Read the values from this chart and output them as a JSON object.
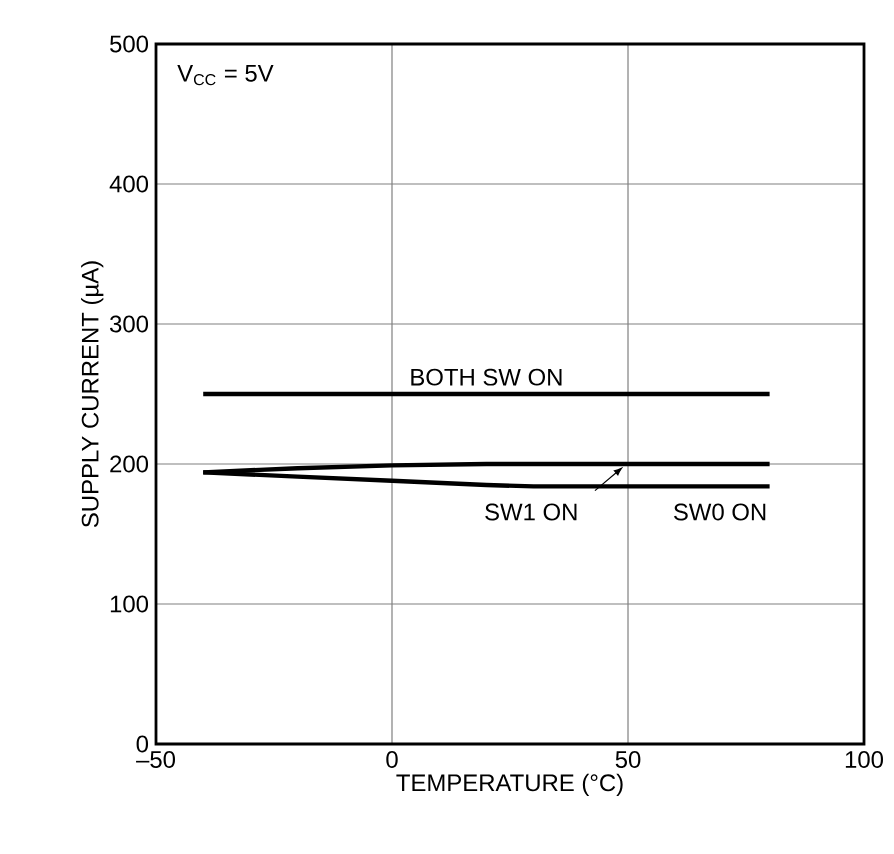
{
  "chart_data": {
    "type": "line",
    "xlabel": "TEMPERATURE (°C)",
    "ylabel": "SUPPLY CURRENT (µA)",
    "xlim": [
      -50,
      100
    ],
    "ylim": [
      0,
      500
    ],
    "xticks": [
      {
        "value": -50,
        "label": "–50"
      },
      0,
      50,
      100
    ],
    "yticks": [
      0,
      100,
      200,
      300,
      400,
      500
    ],
    "grid": true,
    "annotations": [
      "V$_{CC}$ = 5V"
    ],
    "series": [
      {
        "name": "BOTH SW ON",
        "color": "#000000",
        "x": [
          -40,
          80
        ],
        "values": [
          250,
          250
        ]
      },
      {
        "name": "SW1 ON",
        "color": "#000000",
        "x": [
          -40,
          -20,
          0,
          20,
          80
        ],
        "values": [
          194,
          197,
          199,
          200,
          200
        ]
      },
      {
        "name": "SW0 ON",
        "color": "#000000",
        "x": [
          -40,
          -20,
          0,
          20,
          30,
          80
        ],
        "values": [
          194,
          191,
          188,
          185,
          184,
          184
        ]
      }
    ]
  }
}
